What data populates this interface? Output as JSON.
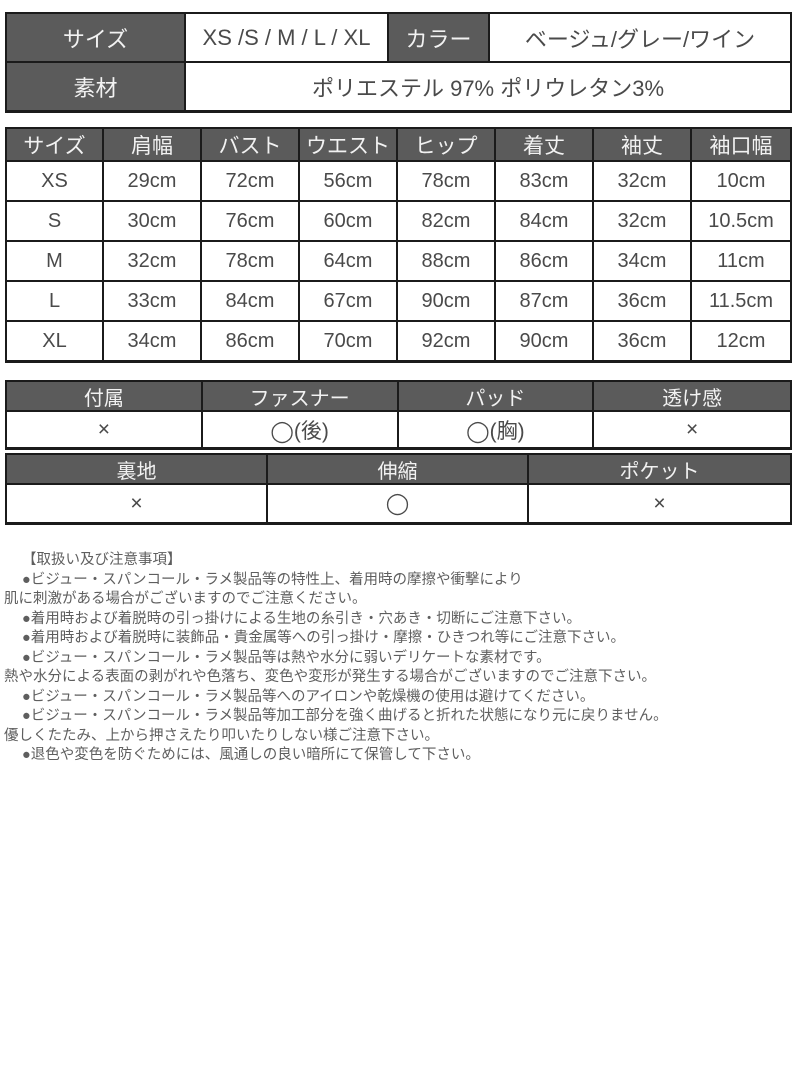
{
  "info_table": {
    "rows": [
      {
        "cells": [
          {
            "type": "header",
            "text": "サイズ"
          },
          {
            "type": "value",
            "text": "XS /S / M / L / XL"
          },
          {
            "type": "header",
            "text": "カラー"
          },
          {
            "type": "value",
            "text": "ベージュ/グレー/ワイン"
          }
        ]
      },
      {
        "cells": [
          {
            "type": "header",
            "text": "素材"
          },
          {
            "type": "value",
            "text": "ポリエステル 97% ポリウレタン3%"
          }
        ]
      }
    ]
  },
  "size_chart": {
    "columns": [
      "サイズ",
      "肩幅",
      "バスト",
      "ウエスト",
      "ヒップ",
      "着丈",
      "袖丈",
      "袖口幅"
    ],
    "rows": [
      [
        "XS",
        "29cm",
        "72cm",
        "56cm",
        "78cm",
        "83cm",
        "32cm",
        "10cm"
      ],
      [
        "S",
        "30cm",
        "76cm",
        "60cm",
        "82cm",
        "84cm",
        "32cm",
        "10.5cm"
      ],
      [
        "M",
        "32cm",
        "78cm",
        "64cm",
        "88cm",
        "86cm",
        "34cm",
        "11cm"
      ],
      [
        "L",
        "33cm",
        "84cm",
        "67cm",
        "90cm",
        "87cm",
        "36cm",
        "11.5cm"
      ],
      [
        "XL",
        "34cm",
        "86cm",
        "70cm",
        "92cm",
        "90cm",
        "36cm",
        "12cm"
      ]
    ]
  },
  "features_table_1": {
    "columns": [
      "付属",
      "ファスナー",
      "パッド",
      "透け感"
    ],
    "values": [
      "×",
      "◯(後)",
      "◯(胸)",
      "×"
    ]
  },
  "features_table_2": {
    "columns": [
      "裏地",
      "伸縮",
      "ポケット"
    ],
    "values": [
      "×",
      "◯",
      "×"
    ]
  },
  "care_notes": {
    "heading": "【取扱い及び注意事項】",
    "lines": [
      "●ビジュー・スパンコール・ラメ製品等の特性上、着用時の摩擦や衝撃により",
      "肌に刺激がある場合がございますのでご注意ください。",
      "●着用時および着脱時の引っ掛けによる生地の糸引き・穴あき・切断にご注意下さい。",
      "●着用時および着脱時に装飾品・貴金属等への引っ掛け・摩擦・ひきつれ等にご注意下さい。",
      "●ビジュー・スパンコール・ラメ製品等は熱や水分に弱いデリケートな素材です。",
      "熱や水分による表面の剥がれや色落ち、変色や変形が発生する場合がございますのでご注意下さい。",
      "●ビジュー・スパンコール・ラメ製品等へのアイロンや乾燥機の使用は避けてください。",
      "●ビジュー・スパンコール・ラメ製品等加工部分を強く曲げると折れた状態になり元に戻りません。",
      "優しくたたみ、上から押さえたり叩いたりしない様ご注意下さい。",
      "●退色や変色を防ぐためには、風通しの良い暗所にて保管して下さい。"
    ]
  },
  "colors": {
    "header_bg": "#5b5b5b",
    "header_text": "#f2f2f2",
    "border": "#1b1b1b",
    "cell_text": "#4a4a4a",
    "note_text": "#5e5e5e"
  }
}
